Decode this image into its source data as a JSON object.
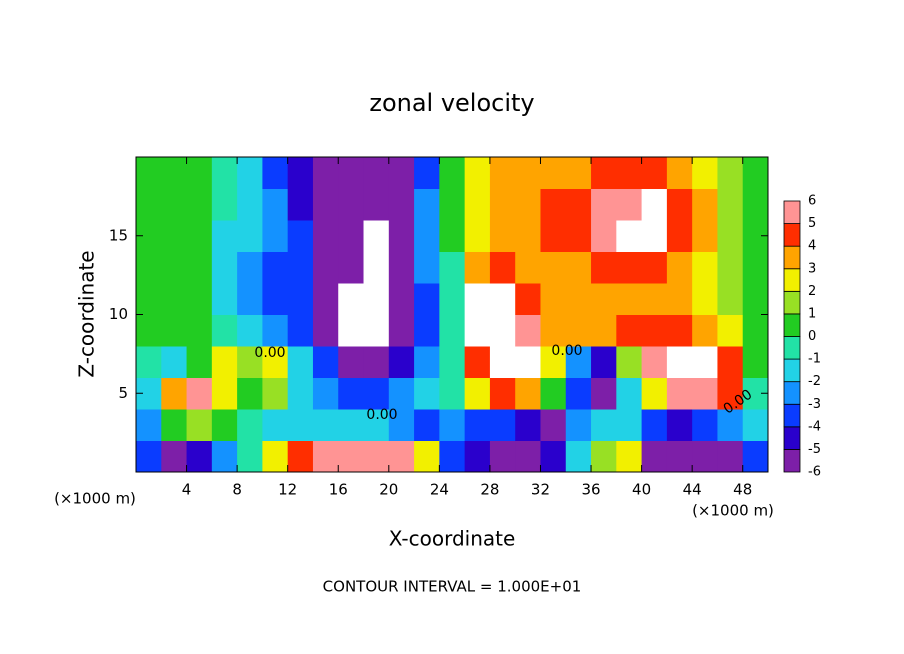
{
  "chart_data": {
    "type": "heatmap",
    "title": "zonal velocity",
    "x_label": "X-coordinate",
    "y_label": "Z-coordinate",
    "unit_labels": [
      "(×1000 m)",
      "(×1000 m)"
    ],
    "footer": "CONTOUR INTERVAL = 1.000E+01",
    "annotations": [
      "0.00",
      "0.00",
      "0.00",
      "0.00"
    ],
    "x": [
      1,
      3,
      5,
      7,
      9,
      11,
      13,
      15,
      17,
      19,
      21,
      23,
      25,
      27,
      29,
      31,
      33,
      35,
      37,
      39,
      41,
      43,
      45,
      47,
      49
    ],
    "z": [
      1,
      3,
      5,
      7,
      9,
      11,
      13,
      15,
      17,
      19
    ],
    "values": [
      [
        -3,
        -5,
        -4,
        -2,
        0,
        3,
        5,
        6,
        6,
        6,
        6,
        3,
        -3,
        -4,
        -6,
        -6,
        -4,
        -1,
        2,
        3,
        -5,
        -6,
        -6,
        -5,
        -3
      ],
      [
        -2,
        1,
        2,
        1,
        0,
        -1,
        -1,
        -1,
        -1,
        -1,
        -2,
        -3,
        -2,
        -3,
        -3,
        -4,
        -5,
        -2,
        -1,
        -1,
        -3,
        -4,
        -3,
        -2,
        -1
      ],
      [
        -1,
        4,
        6,
        3,
        1,
        2,
        -1,
        -2,
        -3,
        -3,
        -2,
        -1,
        0,
        3,
        5,
        4,
        1,
        -3,
        -5,
        -1,
        3,
        6,
        6,
        5,
        0
      ],
      [
        0,
        -1,
        1,
        3,
        2,
        3,
        -1,
        -3,
        -6,
        -5,
        -4,
        -2,
        0,
        5,
        7,
        7,
        3,
        -2,
        -4,
        2,
        6,
        7,
        7,
        5,
        1
      ],
      [
        1,
        1,
        1,
        0,
        -1,
        -2,
        -3,
        -5,
        -7,
        -7,
        -5,
        -3,
        0,
        7,
        7,
        6,
        4,
        4,
        4,
        5,
        5,
        5,
        4,
        3,
        1
      ],
      [
        1,
        1,
        1,
        -1,
        -2,
        -3,
        -3,
        -6,
        -7,
        -7,
        -6,
        -3,
        0,
        7,
        7,
        5,
        4,
        4,
        4,
        4,
        4,
        4,
        3,
        2,
        1
      ],
      [
        1,
        1,
        1,
        -1,
        -2,
        -3,
        -3,
        -5,
        -6,
        -7,
        -6,
        -2,
        0,
        4,
        5,
        4,
        4,
        4,
        5,
        5,
        5,
        4,
        3,
        2,
        1
      ],
      [
        1,
        1,
        1,
        -1,
        -1,
        -2,
        -3,
        -5,
        -6,
        -7,
        -5,
        -2,
        1,
        3,
        4,
        4,
        5,
        5,
        6,
        7,
        7,
        5,
        4,
        2,
        1
      ],
      [
        1,
        1,
        1,
        0,
        -1,
        -2,
        -4,
        -5,
        -5,
        -6,
        -5,
        -2,
        1,
        3,
        4,
        4,
        5,
        5,
        6,
        6,
        7,
        5,
        4,
        2,
        1
      ],
      [
        1,
        1,
        1,
        0,
        -1,
        -3,
        -4,
        -5,
        -5,
        -5,
        -5,
        -3,
        1,
        3,
        4,
        4,
        4,
        4,
        5,
        5,
        5,
        4,
        3,
        2,
        1
      ]
    ],
    "xlim": [
      0,
      50
    ],
    "ylim": [
      0,
      20
    ],
    "xticks": [
      4,
      8,
      12,
      16,
      20,
      24,
      28,
      32,
      36,
      40,
      44,
      48
    ],
    "yticks": [
      5,
      10,
      15
    ],
    "levels": [
      -6,
      -5,
      -4,
      -3,
      -2,
      -1,
      0,
      1,
      2,
      3,
      4,
      5,
      6
    ],
    "colors": [
      "#7d1fa8",
      "#2a00cc",
      "#0a3cff",
      "#1492ff",
      "#22d2e6",
      "#22e2a6",
      "#22cc22",
      "#98e024",
      "#f2f000",
      "#ffa400",
      "#ff2e00",
      "#ff9494"
    ],
    "out_of_range_color": "#ffffff"
  }
}
